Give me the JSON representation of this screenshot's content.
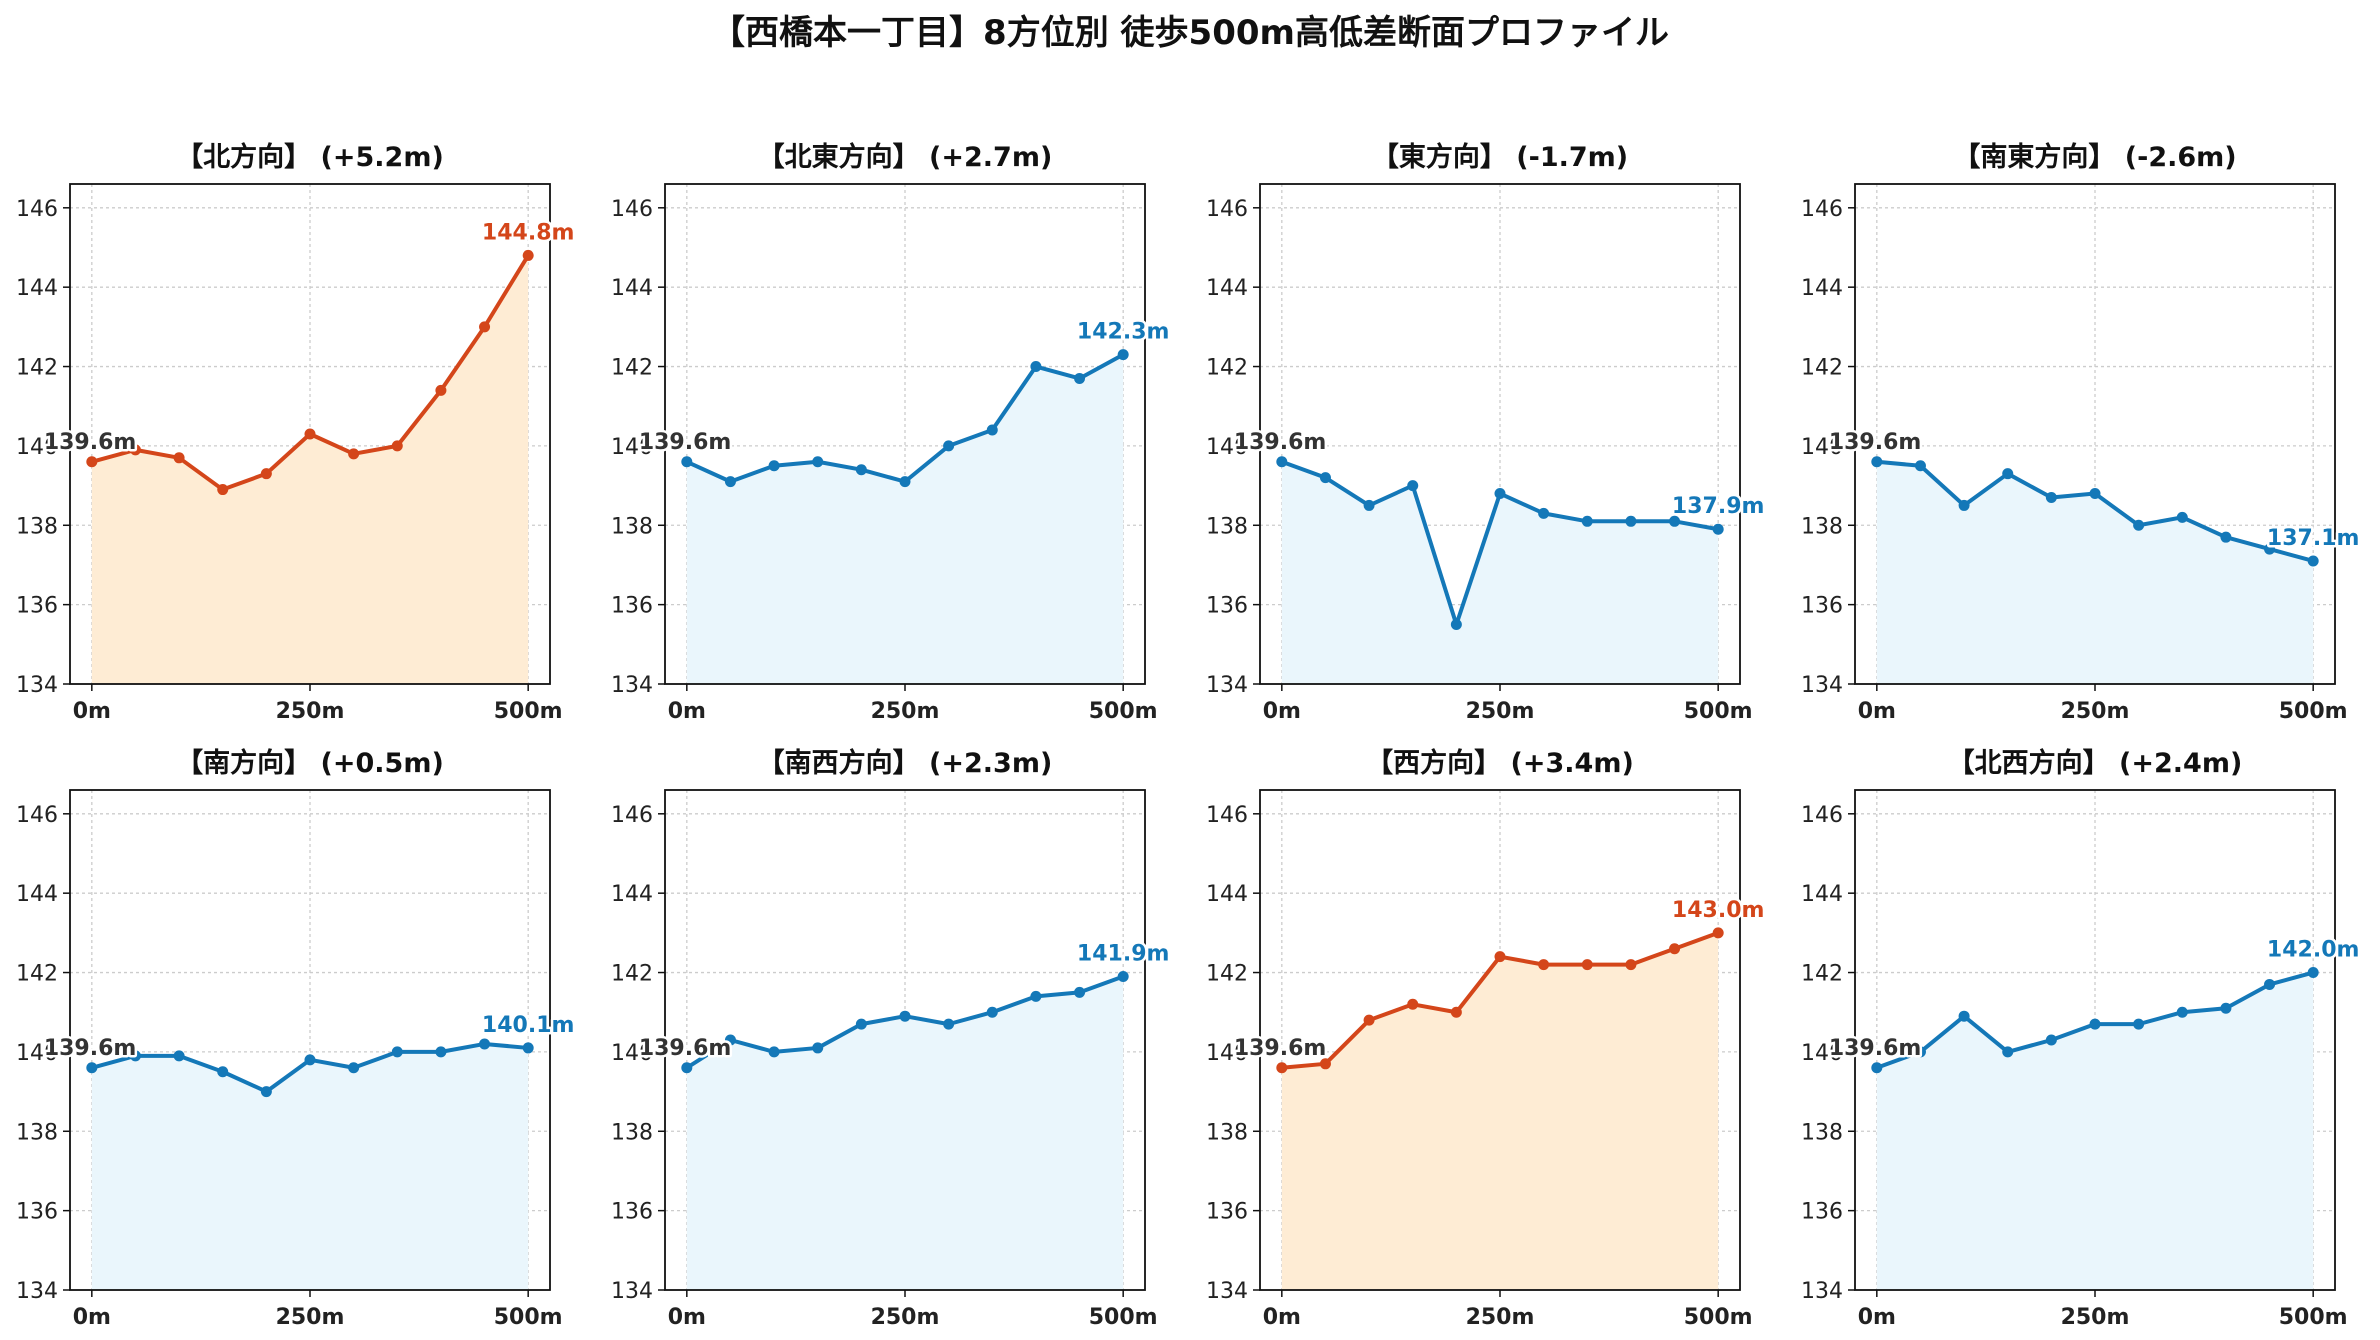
{
  "figure_title": "【西橋本一丁目】8方位別 徒歩500m高低差断面プロファイル",
  "colors": {
    "up": "#d4461a",
    "up_fill": "#feecd4",
    "down": "#1478b8",
    "down_fill": "#eaf6fc",
    "start_label": "#333333"
  },
  "chart_data": [
    {
      "type": "line",
      "title": "【北方向】 (+5.2m)",
      "trend": "up",
      "x": [
        0,
        50,
        100,
        150,
        200,
        250,
        300,
        350,
        400,
        450,
        500
      ],
      "y": [
        139.6,
        139.9,
        139.7,
        138.9,
        139.3,
        140.3,
        139.8,
        140.0,
        141.4,
        143.0,
        144.8
      ],
      "xticks": [
        "0m",
        "250m",
        "500m"
      ],
      "yticks": [
        "134",
        "136",
        "138",
        "140",
        "142",
        "144",
        "146"
      ],
      "ylim": [
        134,
        146.6
      ],
      "start_label": "139.6m",
      "end_label": "144.8m",
      "grid": true
    },
    {
      "type": "line",
      "title": "【北東方向】 (+2.7m)",
      "trend": "down",
      "x": [
        0,
        50,
        100,
        150,
        200,
        250,
        300,
        350,
        400,
        450,
        500
      ],
      "y": [
        139.6,
        139.1,
        139.5,
        139.6,
        139.4,
        139.1,
        140.0,
        140.4,
        142.0,
        141.7,
        142.3
      ],
      "xticks": [
        "0m",
        "250m",
        "500m"
      ],
      "yticks": [
        "134",
        "136",
        "138",
        "140",
        "142",
        "144",
        "146"
      ],
      "ylim": [
        134,
        146.6
      ],
      "start_label": "139.6m",
      "end_label": "142.3m",
      "grid": true
    },
    {
      "type": "line",
      "title": "【東方向】 (-1.7m)",
      "trend": "down",
      "x": [
        0,
        50,
        100,
        150,
        200,
        250,
        300,
        350,
        400,
        450,
        500
      ],
      "y": [
        139.6,
        139.2,
        138.5,
        139.0,
        135.5,
        138.8,
        138.3,
        138.1,
        138.1,
        138.1,
        137.9
      ],
      "xticks": [
        "0m",
        "250m",
        "500m"
      ],
      "yticks": [
        "134",
        "136",
        "138",
        "140",
        "142",
        "144",
        "146"
      ],
      "ylim": [
        134,
        146.6
      ],
      "start_label": "139.6m",
      "end_label": "137.9m",
      "grid": true
    },
    {
      "type": "line",
      "title": "【南東方向】 (-2.6m)",
      "trend": "down",
      "x": [
        0,
        50,
        100,
        150,
        200,
        250,
        300,
        350,
        400,
        450,
        500
      ],
      "y": [
        139.6,
        139.5,
        138.5,
        139.3,
        138.7,
        138.8,
        138.0,
        138.2,
        137.7,
        137.4,
        137.1
      ],
      "xticks": [
        "0m",
        "250m",
        "500m"
      ],
      "yticks": [
        "134",
        "136",
        "138",
        "140",
        "142",
        "144",
        "146"
      ],
      "ylim": [
        134,
        146.6
      ],
      "start_label": "139.6m",
      "end_label": "137.1m",
      "grid": true
    },
    {
      "type": "line",
      "title": "【南方向】 (+0.5m)",
      "trend": "down",
      "x": [
        0,
        50,
        100,
        150,
        200,
        250,
        300,
        350,
        400,
        450,
        500
      ],
      "y": [
        139.6,
        139.9,
        139.9,
        139.5,
        139.0,
        139.8,
        139.6,
        140.0,
        140.0,
        140.2,
        140.1
      ],
      "xticks": [
        "0m",
        "250m",
        "500m"
      ],
      "yticks": [
        "134",
        "136",
        "138",
        "140",
        "142",
        "144",
        "146"
      ],
      "ylim": [
        134,
        146.6
      ],
      "start_label": "139.6m",
      "end_label": "140.1m",
      "grid": true
    },
    {
      "type": "line",
      "title": "【南西方向】 (+2.3m)",
      "trend": "down",
      "x": [
        0,
        50,
        100,
        150,
        200,
        250,
        300,
        350,
        400,
        450,
        500
      ],
      "y": [
        139.6,
        140.3,
        140.0,
        140.1,
        140.7,
        140.9,
        140.7,
        141.0,
        141.4,
        141.5,
        141.9
      ],
      "xticks": [
        "0m",
        "250m",
        "500m"
      ],
      "yticks": [
        "134",
        "136",
        "138",
        "140",
        "142",
        "144",
        "146"
      ],
      "ylim": [
        134,
        146.6
      ],
      "start_label": "139.6m",
      "end_label": "141.9m",
      "grid": true
    },
    {
      "type": "line",
      "title": "【西方向】 (+3.4m)",
      "trend": "up",
      "x": [
        0,
        50,
        100,
        150,
        200,
        250,
        300,
        350,
        400,
        450,
        500
      ],
      "y": [
        139.6,
        139.7,
        140.8,
        141.2,
        141.0,
        142.4,
        142.2,
        142.2,
        142.2,
        142.6,
        143.0
      ],
      "xticks": [
        "0m",
        "250m",
        "500m"
      ],
      "yticks": [
        "134",
        "136",
        "138",
        "140",
        "142",
        "144",
        "146"
      ],
      "ylim": [
        134,
        146.6
      ],
      "start_label": "139.6m",
      "end_label": "143.0m",
      "grid": true
    },
    {
      "type": "line",
      "title": "【北西方向】 (+2.4m)",
      "trend": "down",
      "x": [
        0,
        50,
        100,
        150,
        200,
        250,
        300,
        350,
        400,
        450,
        500
      ],
      "y": [
        139.6,
        140.0,
        140.9,
        140.0,
        140.3,
        140.7,
        140.7,
        141.0,
        141.1,
        141.7,
        142.0
      ],
      "xticks": [
        "0m",
        "250m",
        "500m"
      ],
      "yticks": [
        "134",
        "136",
        "138",
        "140",
        "142",
        "144",
        "146"
      ],
      "ylim": [
        134,
        146.6
      ],
      "start_label": "139.6m",
      "end_label": "142.0m",
      "grid": true
    }
  ]
}
